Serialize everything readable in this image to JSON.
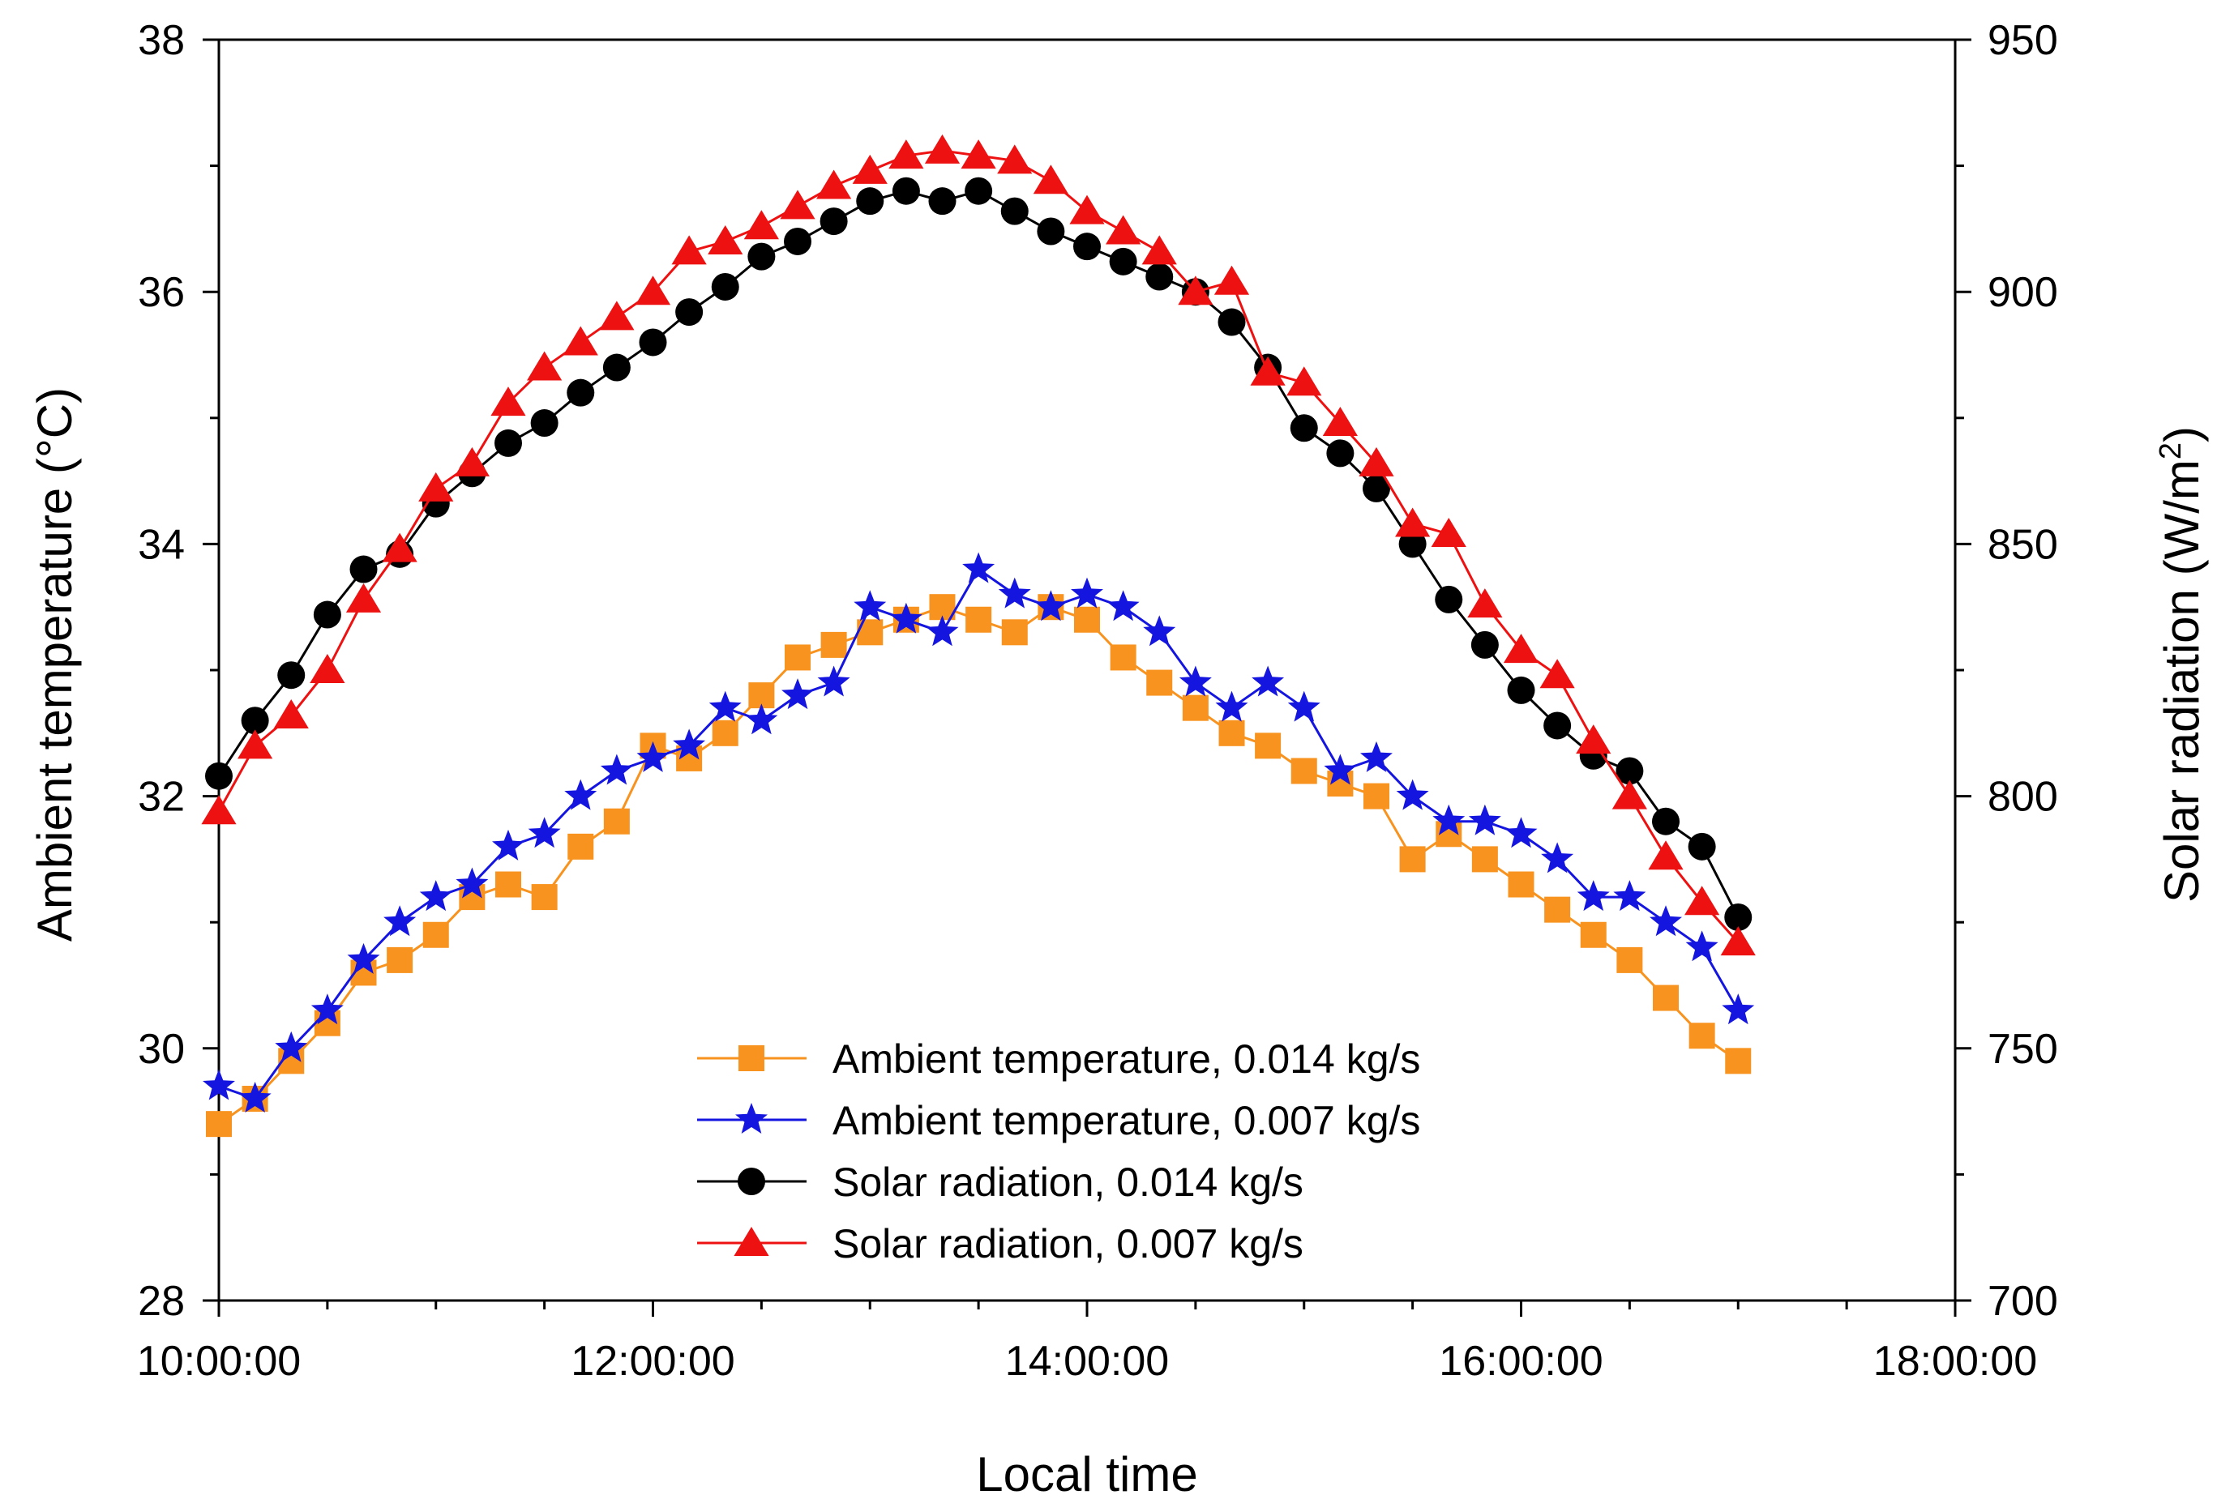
{
  "chart_data": {
    "type": "line",
    "title": "",
    "xlabel": "Local time",
    "ylabel_left": "Ambient temperature (°C)",
    "ylabel_right": {
      "main": "Solar radiation (W/m",
      "sup": "2",
      "close": ")"
    },
    "x_unit": "hours",
    "xlim": [
      10,
      18
    ],
    "x_major_ticks": [
      10,
      12,
      14,
      16,
      18
    ],
    "x_tick_labels": [
      "10:00:00",
      "12:00:00",
      "14:00:00",
      "16:00:00",
      "18:00:00"
    ],
    "x_minor_step": 0.5,
    "ylim_left": [
      28,
      38
    ],
    "y_left_ticks": [
      28,
      30,
      32,
      34,
      36,
      38
    ],
    "ylim_right": [
      700,
      950
    ],
    "y_right_ticks": [
      700,
      750,
      800,
      850,
      900,
      950
    ],
    "grid": false,
    "legend_position": "bottom-center",
    "x": [
      10,
      10.1667,
      10.3333,
      10.5,
      10.6667,
      10.8333,
      11,
      11.1667,
      11.3333,
      11.5,
      11.6667,
      11.8333,
      12,
      12.1667,
      12.3333,
      12.5,
      12.6667,
      12.8333,
      13,
      13.1667,
      13.3333,
      13.5,
      13.6667,
      13.8333,
      14,
      14.1667,
      14.3333,
      14.5,
      14.6667,
      14.8333,
      15,
      15.1667,
      15.3333,
      15.5,
      15.6667,
      15.8333,
      16,
      16.1667,
      16.3333,
      16.5,
      16.6667,
      16.8333,
      17
    ],
    "series": [
      {
        "name": "Ambient temperature, 0.014 kg/s",
        "axis": "left",
        "color": "#F7931E",
        "marker": "square",
        "values": [
          29.4,
          29.6,
          29.9,
          30.2,
          30.6,
          30.7,
          30.9,
          31.2,
          31.3,
          31.2,
          31.6,
          31.8,
          32.4,
          32.3,
          32.5,
          32.8,
          33.1,
          33.2,
          33.3,
          33.4,
          33.5,
          33.4,
          33.3,
          33.5,
          33.4,
          33.1,
          32.9,
          32.7,
          32.5,
          32.4,
          32.2,
          32.1,
          32.0,
          31.5,
          31.7,
          31.5,
          31.3,
          31.1,
          30.9,
          30.7,
          30.4,
          30.1,
          29.9
        ]
      },
      {
        "name": "Ambient temperature, 0.007 kg/s",
        "axis": "left",
        "color": "#1515E0",
        "marker": "star",
        "values": [
          29.7,
          29.6,
          30.0,
          30.3,
          30.7,
          31.0,
          31.2,
          31.3,
          31.6,
          31.7,
          32.0,
          32.2,
          32.3,
          32.4,
          32.7,
          32.6,
          32.8,
          32.9,
          33.5,
          33.4,
          33.3,
          33.8,
          33.6,
          33.5,
          33.6,
          33.5,
          33.3,
          32.9,
          32.7,
          32.9,
          32.7,
          32.2,
          32.3,
          32.0,
          31.8,
          31.8,
          31.7,
          31.5,
          31.2,
          31.2,
          31.0,
          30.8,
          30.3
        ]
      },
      {
        "name": "Solar radiation, 0.014 kg/s",
        "axis": "right",
        "color": "#000000",
        "marker": "circle",
        "values": [
          804,
          815,
          824,
          836,
          845,
          848,
          858,
          864,
          870,
          874,
          880,
          885,
          890,
          896,
          901,
          907,
          910,
          914,
          918,
          920,
          918,
          920,
          916,
          912,
          909,
          906,
          903,
          900,
          894,
          885,
          873,
          868,
          861,
          850,
          839,
          830,
          821,
          814,
          808,
          805,
          795,
          790,
          776
        ]
      },
      {
        "name": "Solar radiation, 0.007 kg/s",
        "axis": "right",
        "color": "#EE1111",
        "marker": "triangle",
        "values": [
          797,
          810,
          816,
          825,
          839,
          849,
          861,
          866,
          878,
          885,
          890,
          895,
          900,
          908,
          910,
          913,
          917,
          921,
          924,
          927,
          928,
          927,
          926,
          922,
          916,
          912,
          908,
          900,
          902,
          884,
          882,
          874,
          866,
          854,
          852,
          838,
          829,
          824,
          811,
          800,
          788,
          779,
          771
        ]
      }
    ]
  }
}
